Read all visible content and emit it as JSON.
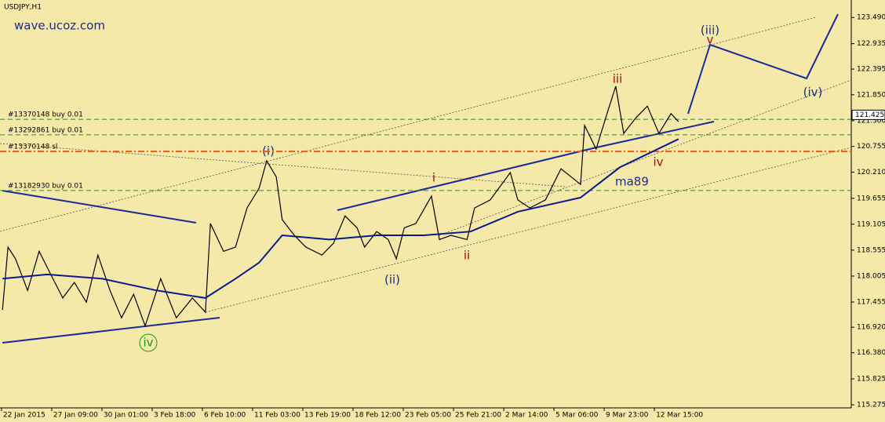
{
  "chart_data": {
    "type": "line",
    "title": "USDJPY,H1",
    "watermark": "wave.ucoz.com",
    "ylim": [
      115.21,
      123.86
    ],
    "yticks": [
      {
        "value": 123.49,
        "label": "123.490"
      },
      122.935,
      122.395,
      {
        "value": 121.85,
        "label": "121.850"
      },
      {
        "value": 121.3,
        "label": "121.300"
      },
      120.755,
      {
        "value": 120.21,
        "label": "120.210"
      },
      119.655,
      119.105,
      118.555,
      118.005,
      117.455,
      {
        "value": 116.92,
        "label": "116.920"
      },
      {
        "value": 116.38,
        "label": "116.380"
      },
      115.825,
      115.275
    ],
    "xlim": [
      -0.03,
      16.92
    ],
    "xticks": [
      {
        "value": 0,
        "label": "22 Jan 2015"
      },
      {
        "value": 1,
        "label": "27 Jan 09:00"
      },
      {
        "value": 2,
        "label": "30 Jan 01:00"
      },
      {
        "value": 3,
        "label": "3 Feb 18:00"
      },
      {
        "value": 4,
        "label": "6 Feb 10:00"
      },
      {
        "value": 5,
        "label": "11 Feb 03:00"
      },
      {
        "value": 6,
        "label": "13 Feb 19:00"
      },
      {
        "value": 7,
        "label": "18 Feb 12:00"
      },
      {
        "value": 8,
        "label": "23 Feb 05:00"
      },
      {
        "value": 9,
        "label": "25 Feb 21:00"
      },
      {
        "value": 10,
        "label": "2 Mar 14:00"
      },
      {
        "value": 11,
        "label": "5 Mar 06:00"
      },
      {
        "value": 12,
        "label": "9 Mar 23:00"
      },
      {
        "value": 13,
        "label": "12 Mar 15:00"
      }
    ],
    "series": [
      {
        "color": "#000000",
        "x": [
          0.02,
          0.13,
          0.28,
          0.52,
          0.75,
          0.98,
          1.22,
          1.45,
          1.69,
          1.92,
          2.16,
          2.39,
          2.63,
          2.86,
          3.17,
          3.48,
          3.8,
          4.06,
          4.16,
          4.42,
          4.66,
          4.89,
          5.13,
          5.28,
          5.47,
          5.59,
          5.83,
          6.06,
          6.38,
          6.61,
          6.84,
          7.08,
          7.23,
          7.47,
          7.7,
          7.86,
          8.02,
          8.25,
          8.56,
          8.72,
          8.95,
          9.27,
          9.42,
          9.73,
          10.13,
          10.28,
          10.52,
          10.83,
          11.14,
          11.53,
          11.61,
          11.84,
          12.08,
          12.23,
          12.39,
          12.63,
          12.86,
          13.09,
          13.33,
          13.48
        ],
        "values": [
          117.29,
          118.62,
          118.37,
          117.7,
          118.53,
          118.04,
          117.54,
          117.87,
          117.45,
          118.45,
          117.7,
          117.12,
          117.62,
          116.95,
          117.95,
          117.12,
          117.54,
          117.24,
          119.12,
          118.53,
          118.62,
          119.45,
          119.87,
          120.45,
          120.11,
          119.2,
          118.87,
          118.62,
          118.45,
          118.7,
          119.28,
          119.03,
          118.62,
          118.95,
          118.78,
          118.37,
          119.03,
          119.12,
          119.7,
          118.78,
          118.87,
          118.78,
          119.45,
          119.62,
          120.2,
          119.62,
          119.45,
          119.62,
          120.28,
          119.95,
          121.2,
          120.7,
          121.53,
          122.03,
          121.03,
          121.36,
          121.61,
          121.03,
          121.45,
          121.28
        ]
      },
      {
        "name": "ma89",
        "color": "#0b1a8c",
        "x": [
          0.02,
          0.91,
          2.0,
          3.09,
          4.06,
          4.66,
          5.13,
          5.59,
          6.53,
          7.47,
          8.41,
          9.34,
          10.28,
          11.53,
          12.31,
          13.48
        ],
        "values": [
          117.95,
          118.04,
          117.95,
          117.7,
          117.54,
          117.95,
          118.29,
          118.87,
          118.78,
          118.87,
          118.87,
          118.95,
          119.37,
          119.67,
          120.31,
          120.91
        ]
      }
    ],
    "orders": [
      {
        "label": "#13370148 buy 0.01",
        "level": 121.33,
        "color": "#2a8a2a"
      },
      {
        "label": "#13292861 buy 0.01",
        "level": 121.0,
        "color": "#2a8a2a"
      },
      {
        "label": "#13370148 sl",
        "level": 120.65,
        "color": "#f06010"
      },
      {
        "label": "#13182930 buy 0.01",
        "level": 119.82,
        "color": "#2a8a2a"
      }
    ],
    "last_price": {
      "value": 121.425,
      "label": "121.425"
    },
    "annotations": [
      "(i)",
      "(ii)",
      "(iii)",
      "(iv)",
      "i",
      "ii",
      "iii",
      "iv",
      "v",
      "iv"
    ]
  }
}
